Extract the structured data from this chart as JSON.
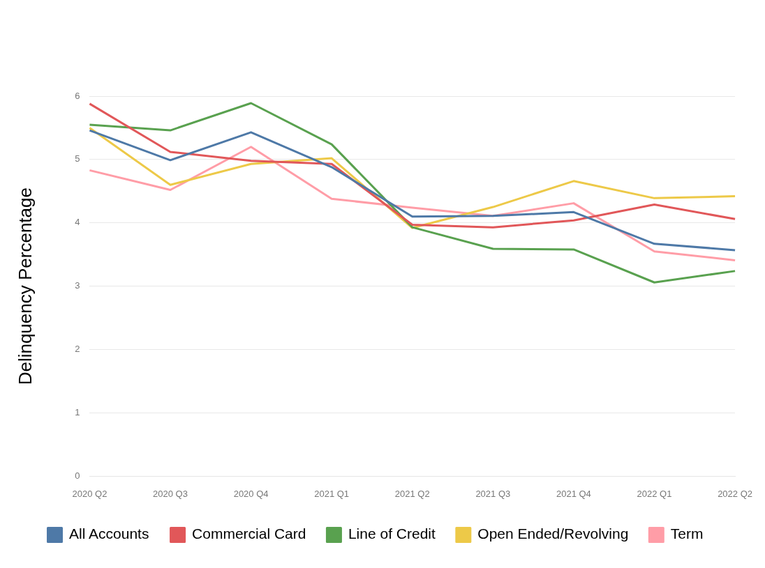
{
  "chart_data": {
    "type": "line",
    "ylabel": "Delinquency Percentage",
    "categories": [
      "2020 Q2",
      "2020 Q3",
      "2020 Q4",
      "2021 Q1",
      "2021 Q2",
      "2021 Q3",
      "2021 Q4",
      "2022 Q1",
      "2022 Q2"
    ],
    "series": [
      {
        "name": "All Accounts",
        "color": "#4e79a7",
        "values": [
          5.46,
          4.99,
          5.43,
          4.88,
          4.1,
          4.11,
          4.17,
          3.67,
          3.57
        ]
      },
      {
        "name": "Commercial Card",
        "color": "#e15759",
        "values": [
          5.88,
          5.12,
          4.98,
          4.93,
          3.97,
          3.93,
          4.04,
          4.29,
          4.06
        ]
      },
      {
        "name": "Line of Credit",
        "color": "#59a14f",
        "values": [
          5.55,
          5.46,
          5.89,
          5.24,
          3.93,
          3.59,
          3.58,
          3.06,
          3.24
        ]
      },
      {
        "name": "Open Ended/Revolving",
        "color": "#edc948",
        "values": [
          5.5,
          4.6,
          4.93,
          5.02,
          3.92,
          4.25,
          4.66,
          4.39,
          4.42
        ]
      },
      {
        "name": "Term",
        "color": "#ff9da7",
        "values": [
          4.83,
          4.52,
          5.2,
          4.38,
          4.24,
          4.11,
          4.31,
          3.55,
          3.41
        ]
      }
    ],
    "ylim": [
      0,
      6
    ],
    "yticks": [
      0,
      1,
      2,
      3,
      4,
      5,
      6
    ],
    "grid": "y",
    "legend": "bottom",
    "marker": "none",
    "line_style": "solid"
  }
}
